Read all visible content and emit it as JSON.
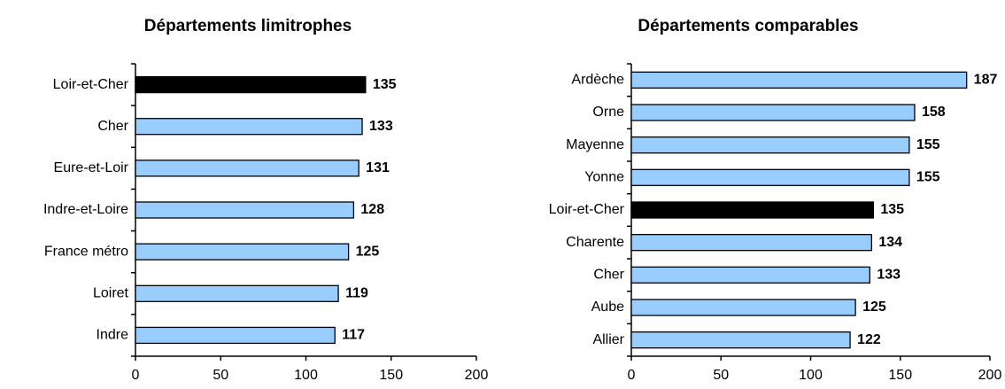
{
  "chart_data": [
    {
      "type": "hbar",
      "title": "Départements limitrophes",
      "categories": [
        "Loir-et-Cher",
        "Cher",
        "Eure-et-Loir",
        "Indre-et-Loire",
        "France métro",
        "Loiret",
        "Indre"
      ],
      "values": [
        135,
        133,
        131,
        128,
        125,
        119,
        117
      ],
      "colors": [
        "#000000",
        "#99ccff",
        "#99ccff",
        "#99ccff",
        "#99ccff",
        "#99ccff",
        "#99ccff"
      ],
      "xlim": [
        0,
        200
      ],
      "xticks": [
        0,
        50,
        100,
        150,
        200
      ]
    },
    {
      "type": "hbar",
      "title": "Départements comparables",
      "categories": [
        "Ardèche",
        "Orne",
        "Mayenne",
        "Yonne",
        "Loir-et-Cher",
        "Charente",
        "Cher",
        "Aube",
        "Allier"
      ],
      "values": [
        187,
        158,
        155,
        155,
        135,
        134,
        133,
        125,
        122
      ],
      "colors": [
        "#99ccff",
        "#99ccff",
        "#99ccff",
        "#99ccff",
        "#000000",
        "#99ccff",
        "#99ccff",
        "#99ccff",
        "#99ccff"
      ],
      "xlim": [
        0,
        200
      ],
      "xticks": [
        0,
        50,
        100,
        150,
        200
      ]
    }
  ]
}
